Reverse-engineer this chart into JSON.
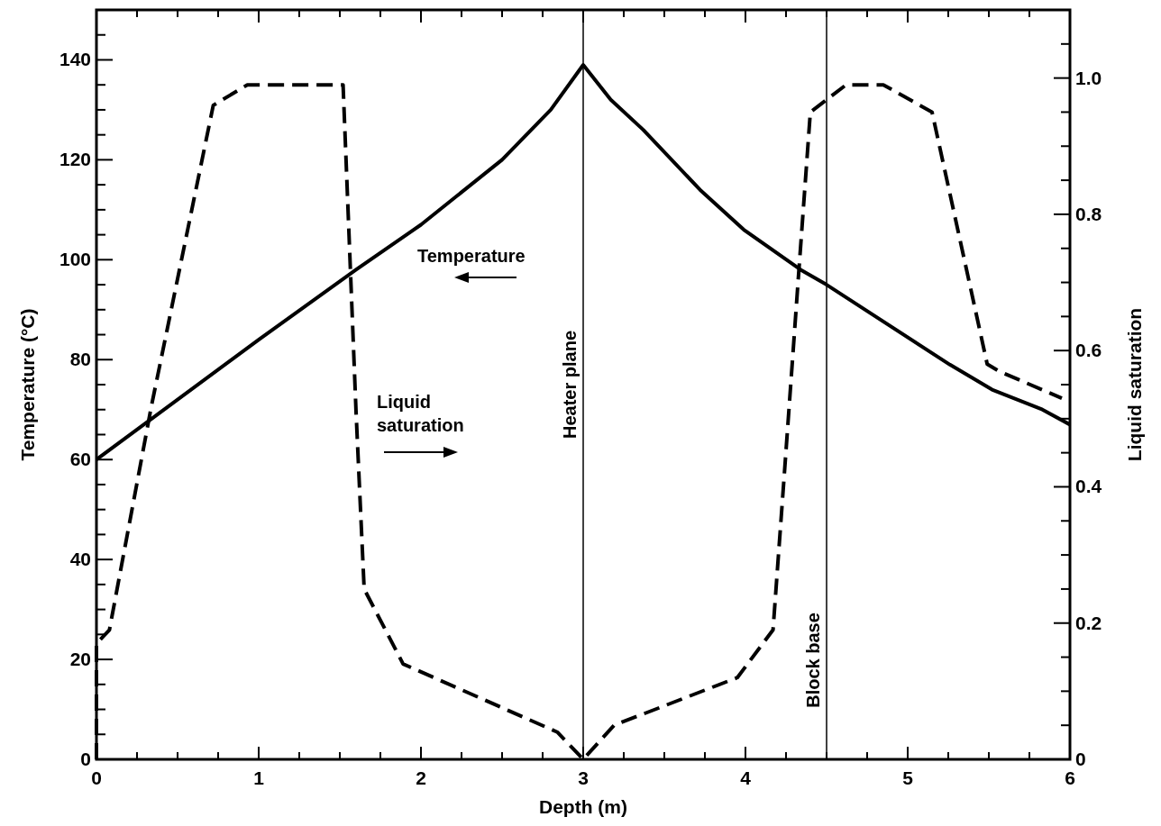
{
  "chart_data": {
    "type": "line",
    "xlabel": "Depth (m)",
    "ylabel": "Temperature (°C)",
    "y2label": "Liquid saturation",
    "xlim": [
      0,
      6
    ],
    "ylim": [
      0,
      150
    ],
    "y2lim": [
      0,
      1.1
    ],
    "xticks": [
      0,
      {
        "value": 0.25,
        "label": null
      },
      {
        "value": 0.5,
        "label": null
      },
      {
        "value": 0.75,
        "label": null
      },
      1,
      {
        "value": 1.25,
        "label": null
      },
      {
        "value": 1.5,
        "label": null
      },
      {
        "value": 1.75,
        "label": null
      },
      2,
      {
        "value": 2.25,
        "label": null
      },
      {
        "value": 2.5,
        "label": null
      },
      {
        "value": 2.75,
        "label": null
      },
      3,
      {
        "value": 3.25,
        "label": null
      },
      {
        "value": 3.5,
        "label": null
      },
      {
        "value": 3.75,
        "label": null
      },
      4,
      {
        "value": 4.25,
        "label": null
      },
      {
        "value": 4.5,
        "label": null
      },
      {
        "value": 4.75,
        "label": null
      },
      5,
      {
        "value": 5.25,
        "label": null
      },
      {
        "value": 5.5,
        "label": null
      },
      {
        "value": 5.75,
        "label": null
      },
      6
    ],
    "yticks": [
      0,
      {
        "value": 5,
        "label": null
      },
      {
        "value": 10,
        "label": null
      },
      {
        "value": 15,
        "label": null
      },
      20,
      {
        "value": 25,
        "label": null
      },
      {
        "value": 30,
        "label": null
      },
      {
        "value": 35,
        "label": null
      },
      40,
      {
        "value": 45,
        "label": null
      },
      {
        "value": 50,
        "label": null
      },
      {
        "value": 55,
        "label": null
      },
      60,
      {
        "value": 65,
        "label": null
      },
      {
        "value": 70,
        "label": null
      },
      {
        "value": 75,
        "label": null
      },
      80,
      {
        "value": 85,
        "label": null
      },
      {
        "value": 90,
        "label": null
      },
      {
        "value": 95,
        "label": null
      },
      100,
      {
        "value": 105,
        "label": null
      },
      {
        "value": 110,
        "label": null
      },
      {
        "value": 115,
        "label": null
      },
      120,
      {
        "value": 125,
        "label": null
      },
      {
        "value": 130,
        "label": null
      },
      {
        "value": 135,
        "label": null
      },
      140,
      {
        "value": 145,
        "label": null
      }
    ],
    "y2ticks": [
      0,
      {
        "value": 0.05,
        "label": null
      },
      {
        "value": 0.1,
        "label": null
      },
      {
        "value": 0.15,
        "label": null
      },
      0.2,
      {
        "value": 0.25,
        "label": null
      },
      {
        "value": 0.3,
        "label": null
      },
      {
        "value": 0.35,
        "label": null
      },
      0.4,
      {
        "value": 0.45,
        "label": null
      },
      {
        "value": 0.5,
        "label": null
      },
      {
        "value": 0.55,
        "label": null
      },
      0.6,
      {
        "value": 0.65,
        "label": null
      },
      {
        "value": 0.7,
        "label": null
      },
      {
        "value": 0.75,
        "label": null
      },
      0.8,
      {
        "value": 0.85,
        "label": null
      },
      {
        "value": 0.9,
        "label": null
      },
      {
        "value": 0.95,
        "label": null
      },
      {
        "value": 1.0,
        "label": "1.0"
      },
      {
        "value": 1.05,
        "label": null
      }
    ],
    "grid": false,
    "series": [
      {
        "name": "Temperature",
        "color": "#000000",
        "line_style": "solid",
        "x": [
          0,
          0.5,
          1,
          1.6,
          2,
          2.5,
          2.8,
          3,
          3.17,
          3.37,
          3.72,
          3.99,
          4.34,
          4.5,
          5.26,
          5.52,
          5.83,
          6
        ],
        "values": [
          60,
          72,
          84,
          98,
          107,
          120,
          130,
          139,
          132,
          126,
          114,
          106,
          98,
          95,
          79,
          74,
          70,
          67
        ]
      },
      {
        "name": "Liquid saturation",
        "color": "#000000",
        "line_style": "dashed",
        "axis": "y2",
        "x": [
          0,
          0,
          0.08,
          0.34,
          0.72,
          0.93,
          1.52,
          1.6,
          1.65,
          1.89,
          2.84,
          3,
          3.19,
          3.95,
          4.17,
          4.24,
          4.33,
          4.4,
          4.62,
          4.85,
          5.15,
          5.49,
          5.56,
          5.95
        ],
        "values": [
          0,
          0.17,
          0.19,
          0.52,
          0.96,
          0.99,
          0.99,
          0.51,
          0.25,
          0.14,
          0.04,
          0,
          0.05,
          0.12,
          0.19,
          0.42,
          0.72,
          0.95,
          0.99,
          0.99,
          0.95,
          0.58,
          0.57,
          0.53
        ]
      }
    ],
    "ref_lines": [
      {
        "axis": "x",
        "value": 3,
        "label": "Heater plane"
      },
      {
        "axis": "x",
        "value": 4.5,
        "label": "Block base"
      }
    ]
  }
}
